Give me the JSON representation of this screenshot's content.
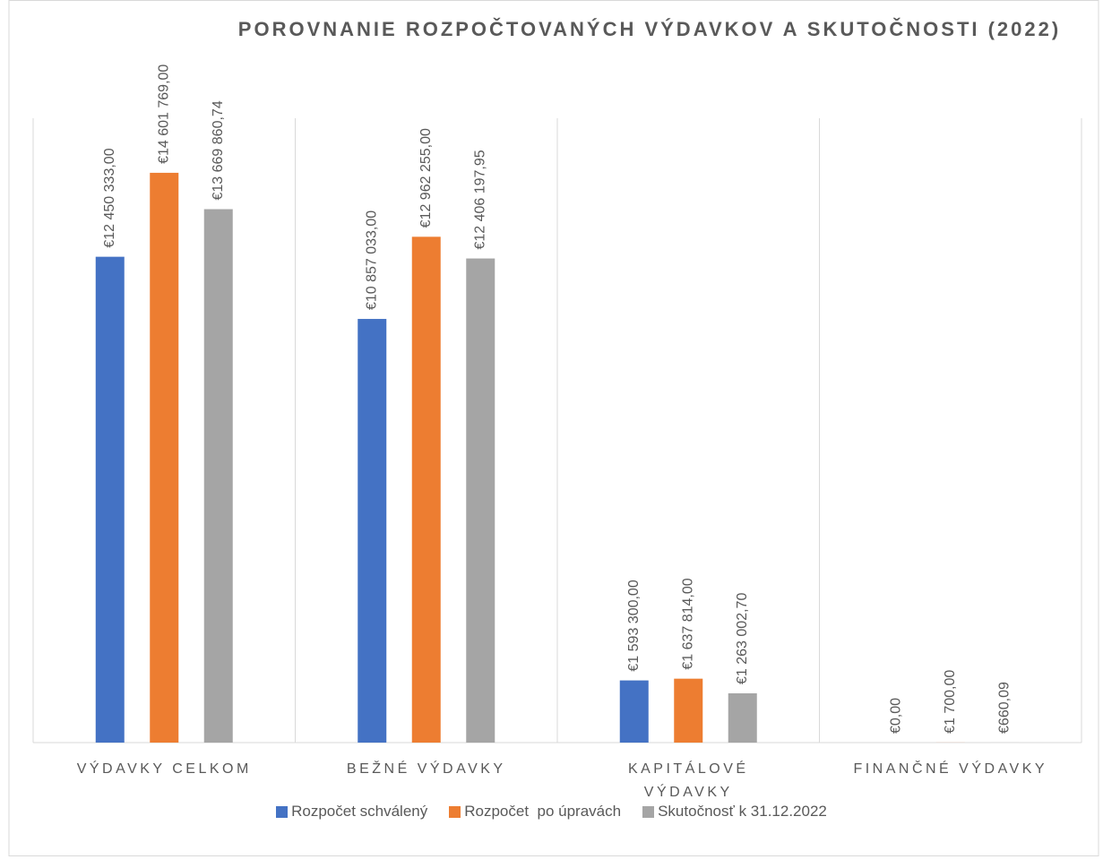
{
  "chart_data": {
    "type": "bar",
    "title": "POROVNANIE ROZPOČTOVANÝCH VÝDAVKOV A SKUTOČNOSTI (2022)",
    "categories": [
      "VÝDAVKY CELKOM",
      "BEŽNÉ VÝDAVKY",
      "KAPITÁLOVÉ VÝDAVKY",
      "FINANČNÉ VÝDAVKY"
    ],
    "series": [
      {
        "name": "Rozpočet schválený",
        "color": "#4472c4",
        "values": [
          12450333,
          10857033,
          1593300,
          0
        ],
        "value_labels": [
          "€12 450 333,00",
          "€10 857 033,00",
          "€1 593 300,00",
          "€0,00"
        ]
      },
      {
        "name": "Rozpočet  po úpravách",
        "color": "#ed7d31",
        "values": [
          14601769,
          12962255,
          1637814,
          1700
        ],
        "value_labels": [
          "€14 601 769,00",
          "€12 962 255,00",
          "€1 637 814,00",
          "€1 700,00"
        ]
      },
      {
        "name": "Skutočnosť k 31.12.2022",
        "color": "#a5a5a5",
        "values": [
          13669860.74,
          12406197.95,
          1263002.7,
          660.09
        ],
        "value_labels": [
          "€13 669 860,74",
          "€12 406 197,95",
          "€1 263 002,70",
          "€660,09"
        ]
      }
    ],
    "ylim": [
      0,
      16000000
    ],
    "legend": "bottom"
  }
}
